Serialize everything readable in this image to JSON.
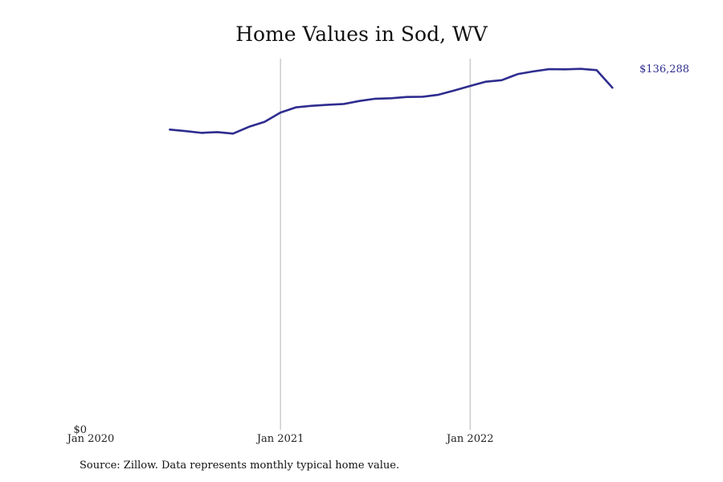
{
  "title": "Home Values in Sod, WV",
  "source": "Source: Zillow. Data represents monthly typical home value.",
  "colors": {
    "line": "#2E2D8F",
    "grid": "#B4B4B4",
    "text": "#111111"
  },
  "chart_data": {
    "type": "line",
    "title": "Home Values in Sod, WV",
    "xlabel": "",
    "ylabel": "",
    "grid": "vertical lines at year ticks",
    "x_ticks": [
      {
        "date": "2020-01",
        "label": "Jan 2020"
      },
      {
        "date": "2021-01",
        "label": "Jan 2021"
      },
      {
        "date": "2022-01",
        "label": "Jan 2022"
      }
    ],
    "y_ticks": [
      {
        "value": 0,
        "label": "$0"
      }
    ],
    "xlim": [
      "2020-01",
      "2022-11"
    ],
    "ylim": [
      0,
      148000
    ],
    "end_label": "$136,288",
    "series": [
      {
        "x": [
          "2020-06",
          "2020-07",
          "2020-08",
          "2020-09",
          "2020-10",
          "2020-11",
          "2020-12",
          "2021-01",
          "2021-02",
          "2021-03",
          "2021-04",
          "2021-05",
          "2021-06",
          "2021-07",
          "2021-08",
          "2021-09",
          "2021-10",
          "2021-11",
          "2021-12",
          "2022-01",
          "2022-02",
          "2022-03",
          "2022-04",
          "2022-05",
          "2022-06",
          "2022-07",
          "2022-08",
          "2022-09",
          "2022-10"
        ],
        "y": [
          119600,
          119000,
          118300,
          118600,
          118000,
          120700,
          122700,
          126400,
          128500,
          129100,
          129500,
          129800,
          131000,
          131900,
          132100,
          132600,
          132700,
          133500,
          135200,
          137000,
          138700,
          139300,
          141700,
          142800,
          143700,
          143600,
          143800,
          143300,
          136288
        ]
      }
    ]
  }
}
